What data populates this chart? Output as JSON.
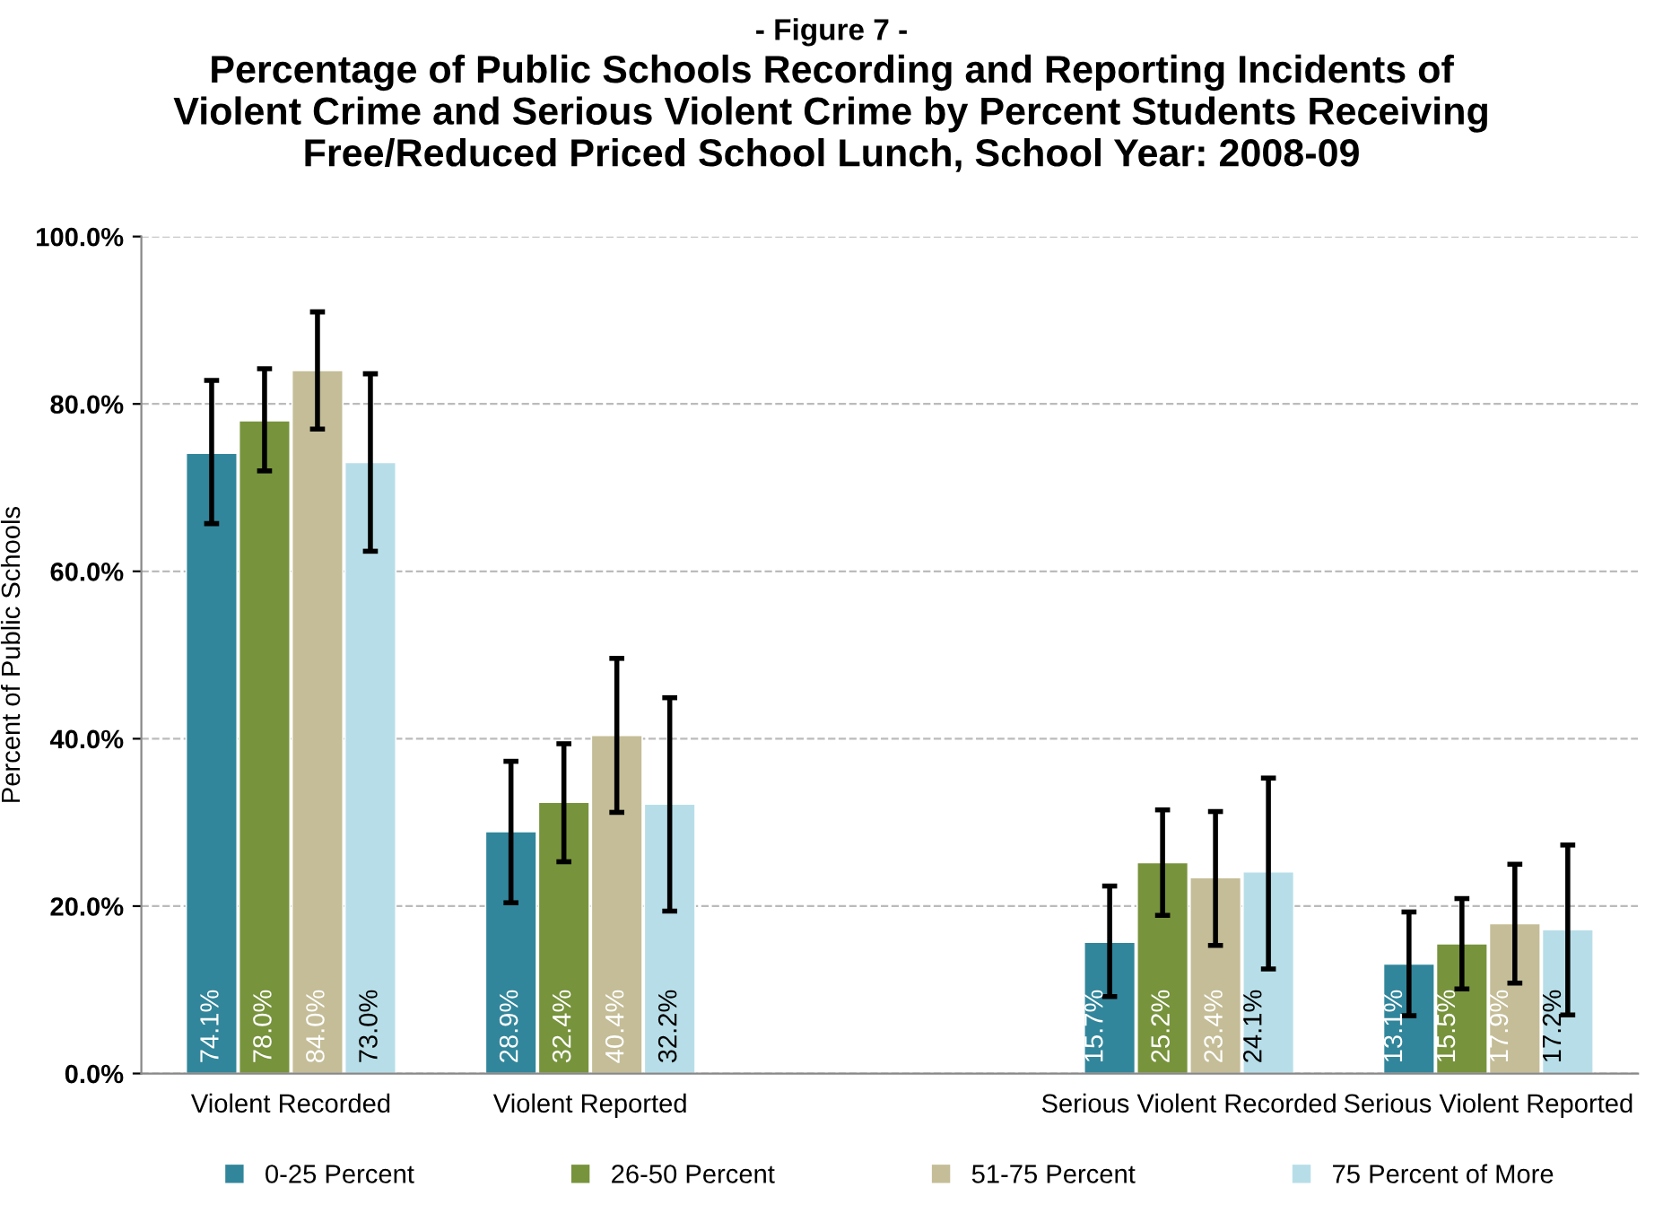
{
  "chart_data": {
    "type": "bar",
    "subtitle": "- Figure 7 -",
    "title": "Percentage of Public Schools Recording and Reporting Incidents of\nViolent Crime and Serious Violent Crime by Percent Students Receiving\nFree/Reduced Priced School Lunch, School Year: 2008-09",
    "ylabel": "Percent of Public Schools",
    "categories": [
      "Violent Recorded",
      "Violent Reported",
      null,
      "Serious Violent Recorded",
      "Serious Violent Reported"
    ],
    "series": [
      {
        "name": "0-25 Percent",
        "color": "#31869b",
        "values": [
          74.1,
          28.9,
          null,
          15.7,
          13.1
        ],
        "value_labels": [
          "74.1%",
          "28.9%",
          null,
          "15.7%",
          "13.1%"
        ],
        "errors": [
          [
            65.7,
            82.8
          ],
          [
            20.4,
            37.3
          ],
          null,
          [
            9.2,
            22.4
          ],
          [
            6.9,
            19.3
          ]
        ]
      },
      {
        "name": "26-50 Percent",
        "color": "#77933c",
        "values": [
          78.0,
          32.4,
          null,
          25.2,
          15.5
        ],
        "value_labels": [
          "78.0%",
          "32.4%",
          null,
          "25.2%",
          "15.5%"
        ],
        "errors": [
          [
            72.0,
            84.2
          ],
          [
            25.3,
            39.4
          ],
          null,
          [
            18.9,
            31.5
          ],
          [
            10.1,
            20.9
          ]
        ]
      },
      {
        "name": "51-75 Percent",
        "color": "#c4bd97",
        "values": [
          84.0,
          40.4,
          null,
          23.4,
          17.9
        ],
        "value_labels": [
          "84.0%",
          "40.4%",
          null,
          "23.4%",
          "17.9%"
        ],
        "errors": [
          [
            77.0,
            91.0
          ],
          [
            31.2,
            49.6
          ],
          null,
          [
            15.3,
            31.3
          ],
          [
            10.8,
            25.0
          ]
        ]
      },
      {
        "name": "75 Percent of More",
        "color": "#b7dee8",
        "values": [
          73.0,
          32.2,
          null,
          24.1,
          17.2
        ],
        "value_labels": [
          "73.0%",
          "32.2%",
          null,
          "24.1%",
          "17.2%"
        ],
        "errors": [
          [
            62.4,
            83.6
          ],
          [
            19.4,
            44.9
          ],
          null,
          [
            12.5,
            35.3
          ],
          [
            7.0,
            27.3
          ]
        ]
      }
    ],
    "ylim": [
      0,
      100
    ],
    "yticks": [
      {
        "value": 0,
        "label": "0.0%"
      },
      {
        "value": 20,
        "label": "20.0%"
      },
      {
        "value": 40,
        "label": "40.0%"
      },
      {
        "value": 60,
        "label": "60.0%"
      },
      {
        "value": 80,
        "label": "80.0%"
      },
      {
        "value": 100,
        "label": "100.0%"
      }
    ],
    "grid": "y",
    "legend": "bottom"
  }
}
